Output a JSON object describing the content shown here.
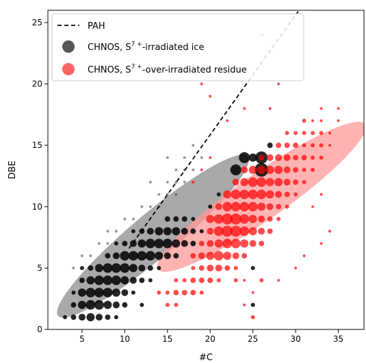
{
  "chart_data": {
    "type": "scatter",
    "xlabel": "#C",
    "ylabel": "DBE",
    "xlim": [
      1,
      38
    ],
    "ylim": [
      0,
      26
    ],
    "x_ticks": [
      5,
      10,
      15,
      20,
      25,
      30,
      35
    ],
    "y_ticks": [
      0,
      5,
      10,
      15,
      20,
      25
    ],
    "grid": false,
    "legend_position": "top-left",
    "legend": [
      {
        "label": "PAH",
        "kind": "dashed-line",
        "color": "#000000"
      },
      {
        "label_main": "CHNOS, S",
        "label_sup": "7 +",
        "label_rest": "-irradiated ice",
        "kind": "marker",
        "color": "#555555"
      },
      {
        "label_main": "CHNOS, S",
        "label_sup": "7 +",
        "label_rest": "-over-irradiated residue",
        "kind": "marker",
        "color": "#ff6666"
      }
    ],
    "pah_line": {
      "x": [
        10.5,
        30.3
      ],
      "y": [
        6.6,
        25.9
      ],
      "color": "#000000"
    },
    "ellipses": [
      {
        "series": "irradiated ice",
        "center": [
          13.3,
          7.6
        ],
        "rx": 14.5,
        "ry": 2.6,
        "angle_deg": 40,
        "color": "#9a9a9a",
        "opacity": 0.85
      },
      {
        "series": "over-irradiated residue",
        "center": [
          26.0,
          10.8
        ],
        "rx": 14.8,
        "ry": 2.7,
        "angle_deg": 35,
        "color": "#ff9a9a",
        "opacity": 0.75
      }
    ],
    "series": [
      {
        "name": "CHNOS, S7+-irradiated ice",
        "color": "#000000",
        "points": [
          [
            3,
            1,
            3
          ],
          [
            4,
            1,
            4
          ],
          [
            5,
            1,
            5
          ],
          [
            6,
            1,
            6
          ],
          [
            7,
            1,
            5
          ],
          [
            8,
            1,
            4
          ],
          [
            9,
            1,
            3
          ],
          [
            4,
            2,
            4
          ],
          [
            5,
            2,
            6
          ],
          [
            6,
            2,
            7
          ],
          [
            7,
            2,
            7
          ],
          [
            8,
            2,
            6
          ],
          [
            9,
            2,
            5
          ],
          [
            10,
            2,
            4
          ],
          [
            12,
            2,
            3
          ],
          [
            4,
            3,
            3
          ],
          [
            5,
            3,
            6
          ],
          [
            6,
            3,
            7
          ],
          [
            7,
            3,
            7
          ],
          [
            8,
            3,
            7
          ],
          [
            9,
            3,
            6
          ],
          [
            10,
            3,
            5
          ],
          [
            11,
            3,
            3
          ],
          [
            5,
            4,
            4
          ],
          [
            6,
            4,
            6
          ],
          [
            7,
            4,
            7
          ],
          [
            8,
            4,
            7
          ],
          [
            9,
            4,
            7
          ],
          [
            10,
            4,
            6
          ],
          [
            11,
            4,
            5
          ],
          [
            12,
            4,
            4
          ],
          [
            13,
            4,
            3
          ],
          [
            5,
            5,
            3
          ],
          [
            6,
            5,
            4
          ],
          [
            7,
            5,
            6
          ],
          [
            8,
            5,
            7
          ],
          [
            9,
            5,
            7
          ],
          [
            10,
            5,
            7
          ],
          [
            11,
            5,
            6
          ],
          [
            12,
            5,
            5
          ],
          [
            13,
            5,
            4
          ],
          [
            14,
            5,
            3
          ],
          [
            8,
            6,
            4
          ],
          [
            9,
            6,
            5
          ],
          [
            10,
            6,
            7
          ],
          [
            11,
            6,
            7
          ],
          [
            12,
            6,
            7
          ],
          [
            13,
            6,
            7
          ],
          [
            14,
            6,
            6
          ],
          [
            15,
            6,
            5
          ],
          [
            16,
            6,
            4
          ],
          [
            9,
            7,
            3
          ],
          [
            10,
            7,
            4
          ],
          [
            11,
            7,
            5
          ],
          [
            12,
            7,
            6
          ],
          [
            13,
            7,
            7
          ],
          [
            14,
            7,
            7
          ],
          [
            15,
            7,
            7
          ],
          [
            16,
            7,
            6
          ],
          [
            17,
            7,
            5
          ],
          [
            18,
            7,
            4
          ],
          [
            11,
            8,
            3
          ],
          [
            12,
            8,
            4
          ],
          [
            13,
            8,
            5
          ],
          [
            14,
            8,
            6
          ],
          [
            15,
            8,
            6
          ],
          [
            16,
            8,
            6
          ],
          [
            17,
            8,
            5
          ],
          [
            18,
            8,
            4
          ],
          [
            19,
            8,
            3
          ],
          [
            15,
            9,
            4
          ],
          [
            16,
            9,
            4
          ],
          [
            17,
            9,
            4
          ],
          [
            18,
            9,
            3
          ],
          [
            20,
            10,
            3
          ],
          [
            21,
            11,
            3
          ],
          [
            23,
            13,
            8
          ],
          [
            24,
            14,
            8
          ],
          [
            25,
            14,
            6
          ],
          [
            26,
            14,
            9
          ],
          [
            26,
            13,
            10
          ],
          [
            27,
            15,
            4
          ],
          [
            25,
            2,
            3
          ],
          [
            25,
            5,
            3
          ]
        ]
      },
      {
        "name": "CHNOS, S7+-over-irradiated residue",
        "color": "#ff0000",
        "points": [
          [
            15,
            2,
            3
          ],
          [
            16,
            2,
            3
          ],
          [
            14,
            3,
            3
          ],
          [
            15,
            3,
            3
          ],
          [
            16,
            3,
            4
          ],
          [
            17,
            3,
            4
          ],
          [
            18,
            3,
            4
          ],
          [
            19,
            3,
            3
          ],
          [
            16,
            4,
            3
          ],
          [
            17,
            4,
            3
          ],
          [
            18,
            4,
            4
          ],
          [
            19,
            4,
            4
          ],
          [
            20,
            4,
            4
          ],
          [
            21,
            4,
            3
          ],
          [
            18,
            5,
            3
          ],
          [
            19,
            5,
            4
          ],
          [
            20,
            5,
            5
          ],
          [
            21,
            5,
            5
          ],
          [
            22,
            5,
            4
          ],
          [
            23,
            5,
            3
          ],
          [
            18,
            6,
            4
          ],
          [
            19,
            6,
            5
          ],
          [
            20,
            6,
            6
          ],
          [
            21,
            6,
            7
          ],
          [
            22,
            6,
            6
          ],
          [
            23,
            6,
            5
          ],
          [
            24,
            6,
            4
          ],
          [
            19,
            7,
            4
          ],
          [
            20,
            7,
            5
          ],
          [
            21,
            7,
            6
          ],
          [
            22,
            7,
            7
          ],
          [
            23,
            7,
            7
          ],
          [
            24,
            7,
            6
          ],
          [
            25,
            7,
            5
          ],
          [
            26,
            7,
            4
          ],
          [
            20,
            8,
            5
          ],
          [
            21,
            8,
            7
          ],
          [
            22,
            8,
            8
          ],
          [
            23,
            8,
            8
          ],
          [
            24,
            8,
            7
          ],
          [
            25,
            8,
            6
          ],
          [
            26,
            8,
            5
          ],
          [
            27,
            8,
            4
          ],
          [
            20,
            9,
            6
          ],
          [
            21,
            9,
            7
          ],
          [
            22,
            9,
            8
          ],
          [
            23,
            9,
            8
          ],
          [
            24,
            9,
            7
          ],
          [
            25,
            9,
            6
          ],
          [
            26,
            9,
            5
          ],
          [
            27,
            9,
            4
          ],
          [
            28,
            9,
            3
          ],
          [
            21,
            10,
            5
          ],
          [
            22,
            10,
            7
          ],
          [
            23,
            10,
            7
          ],
          [
            24,
            10,
            7
          ],
          [
            25,
            10,
            7
          ],
          [
            26,
            10,
            6
          ],
          [
            27,
            10,
            5
          ],
          [
            28,
            10,
            4
          ],
          [
            29,
            10,
            3
          ],
          [
            22,
            11,
            6
          ],
          [
            23,
            11,
            7
          ],
          [
            24,
            11,
            7
          ],
          [
            25,
            11,
            7
          ],
          [
            26,
            11,
            7
          ],
          [
            27,
            11,
            6
          ],
          [
            28,
            11,
            5
          ],
          [
            29,
            11,
            4
          ],
          [
            30,
            11,
            3
          ],
          [
            23,
            12,
            5
          ],
          [
            24,
            12,
            6
          ],
          [
            25,
            12,
            7
          ],
          [
            26,
            12,
            7
          ],
          [
            27,
            12,
            6
          ],
          [
            28,
            12,
            6
          ],
          [
            29,
            12,
            5
          ],
          [
            30,
            12,
            4
          ],
          [
            31,
            12,
            3
          ],
          [
            24,
            13,
            5
          ],
          [
            25,
            13,
            6
          ],
          [
            26,
            13,
            6
          ],
          [
            27,
            13,
            6
          ],
          [
            28,
            13,
            6
          ],
          [
            29,
            13,
            5
          ],
          [
            30,
            13,
            4
          ],
          [
            31,
            13,
            3
          ],
          [
            32,
            13,
            3
          ],
          [
            26,
            14,
            4
          ],
          [
            27,
            14,
            5
          ],
          [
            28,
            14,
            5
          ],
          [
            29,
            14,
            5
          ],
          [
            30,
            14,
            4
          ],
          [
            31,
            14,
            4
          ],
          [
            32,
            14,
            3
          ],
          [
            33,
            14,
            3
          ],
          [
            28,
            15,
            4
          ],
          [
            29,
            15,
            4
          ],
          [
            30,
            15,
            4
          ],
          [
            31,
            15,
            3
          ],
          [
            32,
            15,
            3
          ],
          [
            33,
            15,
            3
          ],
          [
            34,
            15,
            2
          ],
          [
            29,
            16,
            3
          ],
          [
            30,
            16,
            3
          ],
          [
            31,
            16,
            3
          ],
          [
            32,
            16,
            3
          ],
          [
            33,
            16,
            3
          ],
          [
            34,
            16,
            2
          ],
          [
            31,
            17,
            3
          ],
          [
            32,
            17,
            2
          ],
          [
            33,
            17,
            2
          ],
          [
            35,
            17,
            2
          ],
          [
            33,
            18,
            2
          ],
          [
            35,
            18,
            2
          ],
          [
            20,
            19,
            2
          ],
          [
            24,
            18,
            2
          ],
          [
            22,
            17,
            2
          ],
          [
            27,
            18,
            2
          ],
          [
            19,
            20,
            2
          ],
          [
            28,
            20,
            2
          ],
          [
            18,
            12,
            2
          ],
          [
            19,
            13,
            2
          ],
          [
            20,
            14,
            2
          ],
          [
            26,
            24,
            2
          ],
          [
            24,
            2,
            2
          ],
          [
            25,
            1,
            3
          ],
          [
            26,
            4,
            3
          ],
          [
            25,
            3,
            2
          ],
          [
            28,
            4,
            2
          ],
          [
            30,
            5,
            2
          ],
          [
            31,
            6,
            2
          ],
          [
            33,
            7,
            2
          ],
          [
            34,
            8,
            2
          ],
          [
            23,
            4,
            3
          ],
          [
            24,
            4,
            2
          ],
          [
            32,
            10,
            2
          ],
          [
            33,
            11,
            2
          ]
        ]
      }
    ],
    "faint_points": [
      [
        4,
        5,
        2
      ],
      [
        5,
        6,
        2
      ],
      [
        6,
        6,
        2
      ],
      [
        7,
        7,
        2
      ],
      [
        8,
        7,
        2
      ],
      [
        8,
        8,
        2
      ],
      [
        9,
        8,
        2
      ],
      [
        10,
        9,
        2
      ],
      [
        11,
        9,
        2
      ],
      [
        12,
        10,
        2
      ],
      [
        13,
        10,
        2
      ],
      [
        14,
        11,
        2
      ],
      [
        15,
        12,
        2
      ],
      [
        16,
        11,
        2
      ],
      [
        17,
        12,
        2
      ],
      [
        12,
        7,
        2
      ],
      [
        11,
        6,
        2
      ],
      [
        14,
        10,
        2
      ],
      [
        15,
        11,
        2
      ],
      [
        16,
        12,
        2
      ],
      [
        17,
        13,
        2
      ],
      [
        18,
        13,
        2
      ],
      [
        19,
        14,
        2
      ],
      [
        16,
        13,
        2
      ],
      [
        17,
        14,
        2
      ],
      [
        18,
        15,
        2
      ],
      [
        15,
        14,
        2
      ],
      [
        13,
        12,
        2
      ]
    ]
  }
}
